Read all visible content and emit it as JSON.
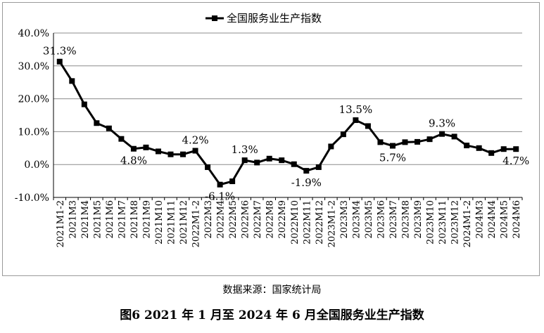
{
  "chart_data": {
    "type": "line",
    "legend": {
      "position": "top-center",
      "label": "全国服务业生产指数"
    },
    "series": [
      {
        "name": "全国服务业生产指数",
        "values": [
          31.3,
          25.4,
          18.3,
          12.6,
          11.0,
          7.8,
          4.8,
          5.2,
          4.0,
          3.1,
          3.1,
          4.2,
          -0.8,
          -6.1,
          -5.1,
          1.3,
          0.6,
          1.8,
          1.3,
          0.1,
          -1.9,
          -0.8,
          5.5,
          9.2,
          13.5,
          11.7,
          6.8,
          5.7,
          6.8,
          6.9,
          7.7,
          9.3,
          8.5,
          5.8,
          5.0,
          3.5,
          4.7,
          4.7
        ],
        "color": "#000000"
      }
    ],
    "categories": [
      "2021M1-2",
      "2021M3",
      "2021M4",
      "2021M5",
      "2021M6",
      "2021M7",
      "2021M8",
      "2021M9",
      "2021M10",
      "2021M11",
      "2021M12",
      "2022M1-2",
      "2022M3",
      "2022M4",
      "2022M5",
      "2022M6",
      "2022M7",
      "2022M8",
      "2022M9",
      "2022M10",
      "2022M11",
      "2022M12",
      "2023M1-2",
      "2023M3",
      "2023M4",
      "2023M5",
      "2023M6",
      "2023M7",
      "2023M8",
      "2023M9",
      "2023M10",
      "2023M11",
      "2023M12",
      "2024M1-2",
      "2024M3",
      "2024M4",
      "2024M5",
      "2024M6"
    ],
    "ylim": [
      -10,
      40
    ],
    "yticks": [
      "-10.0%",
      "0.0%",
      "10.0%",
      "20.0%",
      "30.0%",
      "40.0%"
    ],
    "grid": true,
    "annotations": [
      {
        "index": 0,
        "text": "31.3%",
        "pos": "above"
      },
      {
        "index": 6,
        "text": "4.8%",
        "pos": "below"
      },
      {
        "index": 11,
        "text": "4.2%",
        "pos": "above"
      },
      {
        "index": 13,
        "text": "-6.1%",
        "pos": "below"
      },
      {
        "index": 15,
        "text": "1.3%",
        "pos": "above"
      },
      {
        "index": 20,
        "text": "-1.9%",
        "pos": "below"
      },
      {
        "index": 24,
        "text": "13.5%",
        "pos": "above"
      },
      {
        "index": 27,
        "text": "5.7%",
        "pos": "below"
      },
      {
        "index": 31,
        "text": "9.3%",
        "pos": "above"
      },
      {
        "index": 37,
        "text": "4.7%",
        "pos": "below"
      }
    ]
  },
  "source": "数据来源：国家统计局",
  "caption": "图6 2021 年 1 月至 2024 年 6 月全国服务业生产指数"
}
